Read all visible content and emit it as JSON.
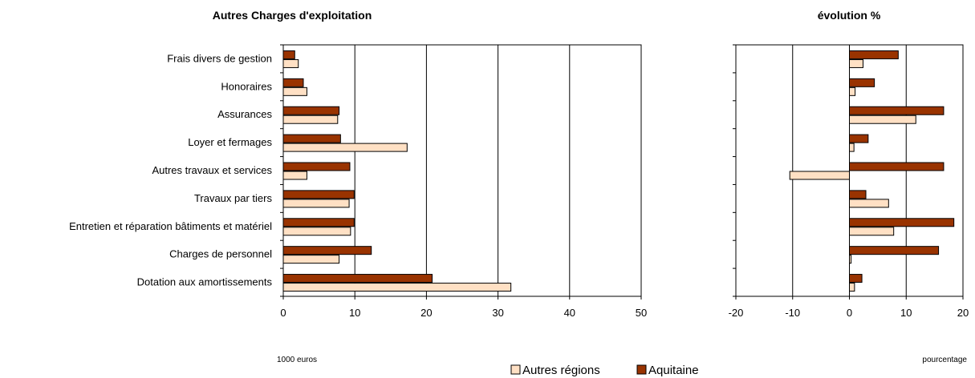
{
  "colors": {
    "aquitaine": "#993300",
    "autres": "#FFE0C4",
    "edge": "#000000"
  },
  "chart_data": [
    {
      "type": "bar",
      "orientation": "horizontal",
      "title": "Autres Charges d'exploitation",
      "unit_label": "1000 euros",
      "categories": [
        "Frais divers de gestion",
        "Honoraires",
        "Assurances",
        "Loyer et fermages",
        "Autres travaux et services",
        "Travaux par tiers",
        "Entretien et réparation bâtiments et matériel",
        "Charges de personnel",
        "Dotation aux amortissements"
      ],
      "series": [
        {
          "name": "Aquitaine",
          "values": [
            1.6,
            2.8,
            7.8,
            8.0,
            9.3,
            9.9,
            9.9,
            12.3,
            20.8
          ]
        },
        {
          "name": "Autres régions",
          "values": [
            2.1,
            3.3,
            7.6,
            17.3,
            3.3,
            9.2,
            9.4,
            7.8,
            31.8
          ]
        }
      ],
      "xlim": [
        0,
        50
      ],
      "xticks": [
        0,
        10,
        20,
        30,
        40,
        50
      ],
      "grid": true
    },
    {
      "type": "bar",
      "orientation": "horizontal",
      "title": "évolution %",
      "unit_label": "pourcentage",
      "categories": [
        "Frais divers de gestion",
        "Honoraires",
        "Assurances",
        "Loyer et fermages",
        "Autres travaux et services",
        "Travaux par tiers",
        "Entretien et réparation bâtiments et matériel",
        "Charges de personnel",
        "Dotation aux amortissements"
      ],
      "series": [
        {
          "name": "Aquitaine",
          "values": [
            8.6,
            4.4,
            16.6,
            3.3,
            16.6,
            2.9,
            18.4,
            15.7,
            2.2
          ]
        },
        {
          "name": "Autres régions",
          "values": [
            2.4,
            1.0,
            11.7,
            0.8,
            -10.5,
            6.9,
            7.8,
            0.3,
            0.9
          ]
        }
      ],
      "xlim": [
        -20,
        20
      ],
      "xticks": [
        -20,
        -10,
        0,
        10,
        20
      ],
      "grid": true
    }
  ],
  "legend": {
    "placement": "bottom-center",
    "items": [
      {
        "label": "Autres régions",
        "color_key": "autres"
      },
      {
        "label": "Aquitaine",
        "color_key": "aquitaine"
      }
    ]
  }
}
